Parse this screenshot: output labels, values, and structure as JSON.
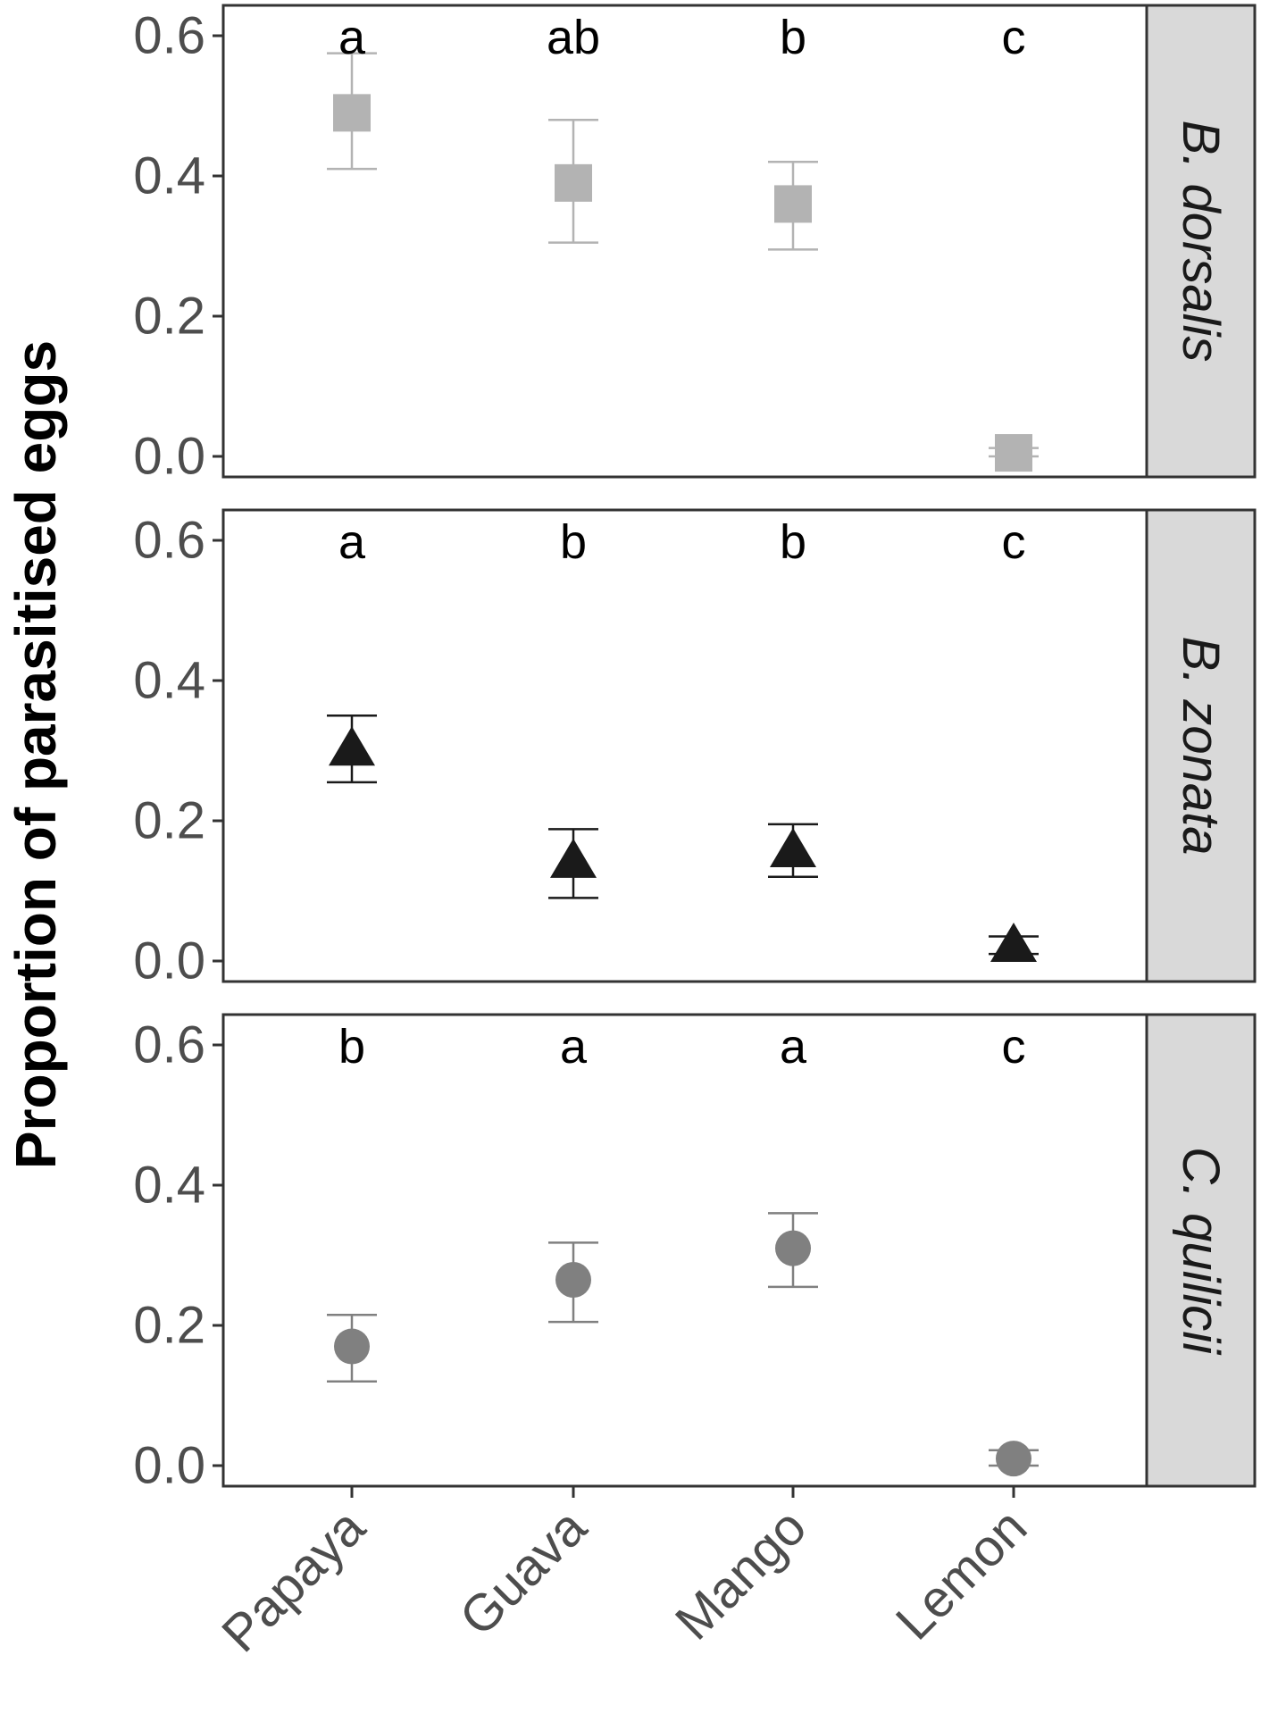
{
  "chart_data": {
    "type": "scatter",
    "subtype": "faceted point-range plot with error bars",
    "categories": [
      "Papaya",
      "Guava",
      "Mango",
      "Lemon"
    ],
    "ylabel": "Proportion of parasitised eggs",
    "xlabel": "",
    "ylim": [
      0,
      0.6
    ],
    "yticks": [
      "0.0",
      "0.2",
      "0.4",
      "0.6"
    ],
    "grid": false,
    "legend": "none",
    "facet_strip_color": "#d9d9d9",
    "panels": [
      {
        "facet_label": "B. dorsalis",
        "marker": "square",
        "color": "#b3b3b3",
        "values": [
          0.49,
          0.39,
          0.36,
          0.005
        ],
        "error_low": [
          0.41,
          0.305,
          0.295,
          0.0
        ],
        "error_high": [
          0.575,
          0.48,
          0.42,
          0.012
        ],
        "letters": [
          "a",
          "ab",
          "b",
          "c"
        ]
      },
      {
        "facet_label": "B. zonata",
        "marker": "triangle",
        "color": "#1a1a1a",
        "values": [
          0.3,
          0.14,
          0.155,
          0.02
        ],
        "error_low": [
          0.255,
          0.09,
          0.12,
          0.01
        ],
        "error_high": [
          0.35,
          0.188,
          0.195,
          0.035
        ],
        "letters": [
          "a",
          "b",
          "b",
          "c"
        ]
      },
      {
        "facet_label": "C. quilicii",
        "marker": "circle",
        "color": "#808080",
        "values": [
          0.17,
          0.265,
          0.31,
          0.01
        ],
        "error_low": [
          0.12,
          0.205,
          0.255,
          0.0
        ],
        "error_high": [
          0.215,
          0.318,
          0.36,
          0.022
        ],
        "letters": [
          "b",
          "a",
          "a",
          "c"
        ]
      }
    ]
  }
}
